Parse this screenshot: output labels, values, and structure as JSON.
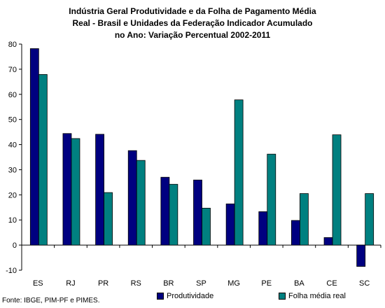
{
  "chart_data": {
    "type": "bar",
    "title": "Indústria Geral Produtividade e da Folha de Pagamento Média Real - Brasil e Unidades da Federação Indicador Acumulado no Ano: Variação Percentual 2002-2011",
    "title_lines": [
      "Indústria Geral Produtividade e da Folha de Pagamento Média",
      "Real - Brasil e Unidades da Federação Indicador Acumulado",
      "no Ano: Variação Percentual 2002-2011"
    ],
    "categories": [
      "ES",
      "RJ",
      "PR",
      "RS",
      "BR",
      "SP",
      "MG",
      "PE",
      "BA",
      "CE",
      "SC"
    ],
    "series": [
      {
        "name": "Produtividade",
        "color": "#000080",
        "values": [
          78.2,
          44.4,
          44.1,
          37.6,
          27.0,
          25.9,
          16.4,
          13.3,
          9.8,
          3.0,
          -8.5
        ]
      },
      {
        "name": "Folha média real",
        "color": "#008080",
        "values": [
          67.9,
          42.4,
          20.9,
          33.7,
          24.2,
          14.7,
          57.8,
          36.2,
          20.5,
          43.9,
          20.5
        ]
      }
    ],
    "ylim": [
      -10,
      80
    ],
    "yticks": [
      "-10",
      "0",
      "10",
      "20",
      "30",
      "40",
      "50",
      "60",
      "70",
      "80"
    ],
    "xlabel": "",
    "ylabel": "",
    "grid": false,
    "legend": "bottom"
  },
  "source": "Fonte: IBGE, PIM-PF e PIMES."
}
